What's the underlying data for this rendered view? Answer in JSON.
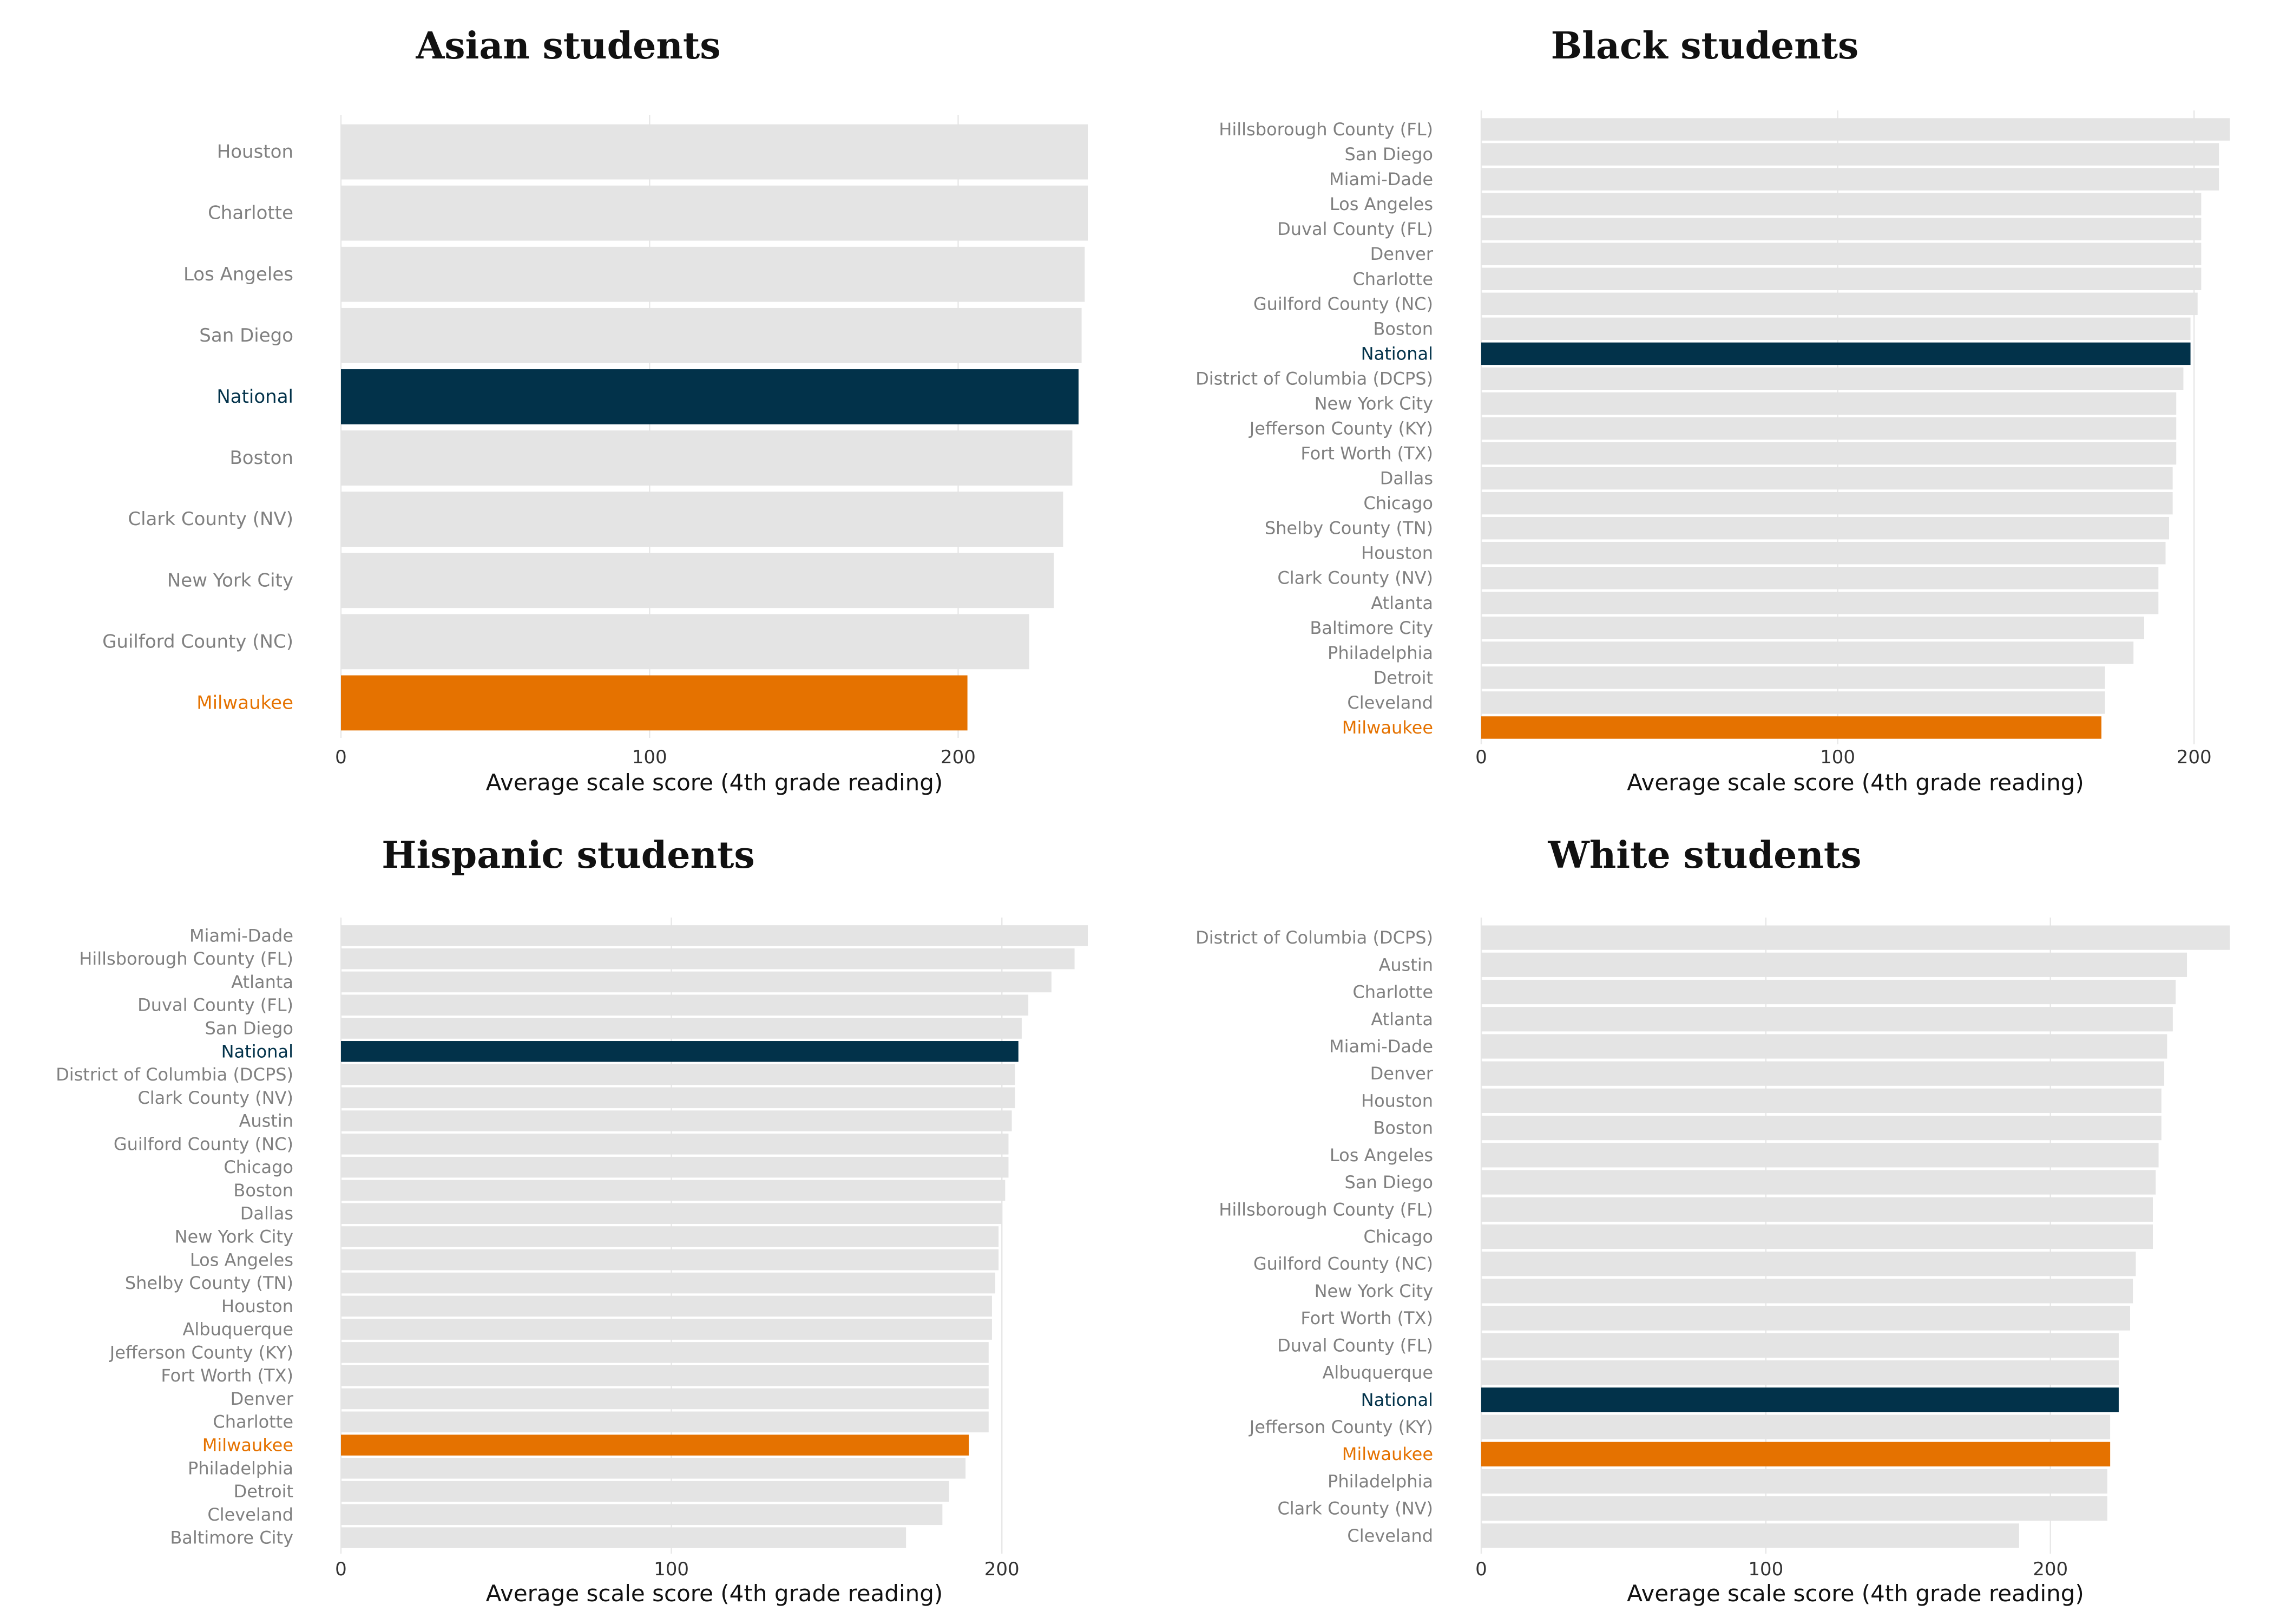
{
  "colors": {
    "bar_default": "#e4e4e4",
    "bar_national": "#02324a",
    "bar_milwaukee": "#e57200",
    "label_default": "#808080",
    "label_national": "#02324a",
    "label_milwaukee": "#e57200"
  },
  "chart_data": [
    {
      "type": "bar",
      "orientation": "horizontal",
      "title": "Asian students",
      "xlabel": "Average scale score (4th grade reading)",
      "xlim": [
        0,
        242
      ],
      "xticks": [
        0,
        100,
        200
      ],
      "grid": true,
      "categories": [
        "Houston",
        "Charlotte",
        "Los Angeles",
        "San Diego",
        "National",
        "Boston",
        "Clark County (NV)",
        "New York City",
        "Guilford County (NC)",
        "Milwaukee"
      ],
      "values": [
        242,
        242,
        241,
        240,
        239,
        237,
        234,
        231,
        223,
        203
      ],
      "highlight": {
        "National": "national",
        "Milwaukee": "milwaukee"
      }
    },
    {
      "type": "bar",
      "orientation": "horizontal",
      "title": "Black students",
      "xlabel": "Average scale score (4th grade reading)",
      "xlim": [
        0,
        210
      ],
      "xticks": [
        0,
        100,
        200
      ],
      "grid": true,
      "categories": [
        "Hillsborough County (FL)",
        "San Diego",
        "Miami-Dade",
        "Los Angeles",
        "Duval County (FL)",
        "Denver",
        "Charlotte",
        "Guilford County (NC)",
        "Boston",
        "National",
        "District of Columbia (DCPS)",
        "New York City",
        "Jefferson County (KY)",
        "Fort Worth (TX)",
        "Dallas",
        "Chicago",
        "Shelby County (TN)",
        "Houston",
        "Clark County (NV)",
        "Atlanta",
        "Baltimore City",
        "Philadelphia",
        "Detroit",
        "Cleveland",
        "Milwaukee"
      ],
      "values": [
        210,
        207,
        207,
        202,
        202,
        202,
        202,
        201,
        199,
        199,
        197,
        195,
        195,
        195,
        194,
        194,
        193,
        192,
        190,
        190,
        186,
        183,
        175,
        175,
        174
      ],
      "highlight": {
        "National": "national",
        "Milwaukee": "milwaukee"
      }
    },
    {
      "type": "bar",
      "orientation": "horizontal",
      "title": "Hispanic students",
      "xlabel": "Average scale score (4th grade reading)",
      "xlim": [
        0,
        226
      ],
      "xticks": [
        0,
        100,
        200
      ],
      "grid": true,
      "categories": [
        "Miami-Dade",
        "Hillsborough County (FL)",
        "Atlanta",
        "Duval County (FL)",
        "San Diego",
        "National",
        "District of Columbia (DCPS)",
        "Clark County (NV)",
        "Austin",
        "Guilford County (NC)",
        "Chicago",
        "Boston",
        "Dallas",
        "New York City",
        "Los Angeles",
        "Shelby County (TN)",
        "Houston",
        "Albuquerque",
        "Jefferson County (KY)",
        "Fort Worth (TX)",
        "Denver",
        "Charlotte",
        "Milwaukee",
        "Philadelphia",
        "Detroit",
        "Cleveland",
        "Baltimore City"
      ],
      "values": [
        226,
        222,
        215,
        208,
        206,
        205,
        204,
        204,
        203,
        202,
        202,
        201,
        200,
        199,
        199,
        198,
        197,
        197,
        196,
        196,
        196,
        196,
        190,
        189,
        184,
        182,
        171
      ],
      "highlight": {
        "National": "national",
        "Milwaukee": "milwaukee"
      }
    },
    {
      "type": "bar",
      "orientation": "horizontal",
      "title": "White students",
      "xlabel": "Average scale score (4th grade reading)",
      "xlim": [
        0,
        263
      ],
      "xticks": [
        0,
        100,
        200
      ],
      "grid": true,
      "categories": [
        "District of Columbia (DCPS)",
        "Austin",
        "Charlotte",
        "Atlanta",
        "Miami-Dade",
        "Denver",
        "Houston",
        "Boston",
        "Los Angeles",
        "San Diego",
        "Hillsborough County (FL)",
        "Chicago",
        "Guilford County (NC)",
        "New York City",
        "Fort Worth (TX)",
        "Duval County (FL)",
        "Albuquerque",
        "National",
        "Jefferson County (KY)",
        "Milwaukee",
        "Philadelphia",
        "Clark County (NV)",
        "Cleveland"
      ],
      "values": [
        263,
        248,
        244,
        243,
        241,
        240,
        239,
        239,
        238,
        237,
        236,
        236,
        230,
        229,
        228,
        224,
        224,
        224,
        221,
        221,
        220,
        220,
        189
      ],
      "highlight": {
        "National": "national",
        "Milwaukee": "milwaukee"
      }
    }
  ]
}
